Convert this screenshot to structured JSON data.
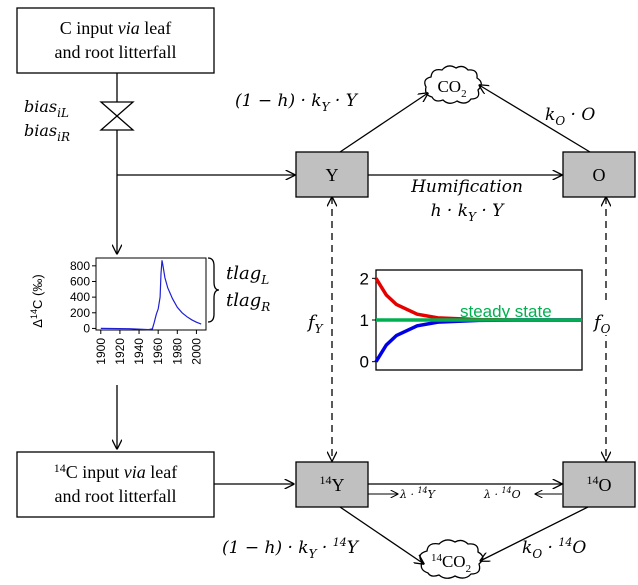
{
  "colors": {
    "pool_fill": "#c0c0c0",
    "curve_red": "#e60000",
    "curve_blue": "#0000e6",
    "curve_green": "#00b050",
    "steady_label": "#00b050",
    "series_line": "#1f1fd6"
  },
  "icons": [
    "valve-icon",
    "cloud-icon",
    "curly-brace-icon"
  ],
  "input_box": {
    "line1_pre": "C input ",
    "line1_via": "via",
    "line1_post": " leaf",
    "line2": "and root litterfall"
  },
  "input14_box": {
    "sup": "14",
    "line1_pre": "C input ",
    "line1_via": "via",
    "line1_post": " leaf",
    "line2": "and root litterfall"
  },
  "bias": {
    "il_base": "bias",
    "il_sub": "iL",
    "ir_base": "bias",
    "ir_sub": "iR"
  },
  "pools": {
    "Y": "Y",
    "O": "O",
    "Y14_sup": "14",
    "Y14": "Y",
    "O14_sup": "14",
    "O14": "O"
  },
  "co2": {
    "top_main": "CO",
    "top_sub": "2",
    "bottom_sup": "14",
    "bottom_main": "CO",
    "bottom_sub": "2"
  },
  "fluxes": {
    "top_left": "(1 − h) · k",
    "top_left_sub": "Y",
    "top_left_tail": " · Y",
    "top_right": "k",
    "top_right_sub": "O",
    "top_right_tail": " · O",
    "humification_label": "Humification",
    "humification_formula": "h · k",
    "humification_sub": "Y",
    "humification_tail": " · Y",
    "bottom_left": "(1 − h) · k",
    "bottom_left_sub": "Y",
    "bottom_left_mid": " · ",
    "bottom_left_sup": "14",
    "bottom_left_tail": "Y",
    "bottom_right": "k",
    "bottom_right_sub": "O",
    "bottom_right_mid": " · ",
    "bottom_right_sup": "14",
    "bottom_right_tail": "O",
    "decay_y": "λ · ",
    "decay_y_sup": "14",
    "decay_y_tail": "Y",
    "decay_o": "λ · ",
    "decay_o_sup": "14",
    "decay_o_tail": "O"
  },
  "fractions": {
    "fy": "f",
    "fy_sub": "Y",
    "fo": "f",
    "fo_sub": "O"
  },
  "tlag": {
    "l_base": "tlag",
    "l_sub": "L",
    "r_base": "tlag",
    "r_sub": "R"
  },
  "steady_state_label": "steady state",
  "chart_data": [
    {
      "type": "line",
      "ylabel": "Δ14C (‰)",
      "ylabel_delta": "Δ",
      "ylabel_sup": "14",
      "ylabel_tail": "C (‰)",
      "xlim": [
        1895,
        2010
      ],
      "ylim": [
        -20,
        900
      ],
      "yticks": [
        "0",
        "200",
        "400",
        "600",
        "800"
      ],
      "xticks": [
        "1900",
        "1920",
        "1940",
        "1960",
        "1980",
        "2000"
      ],
      "series": [
        {
          "x": [
            1900,
            1930,
            1950,
            1954,
            1956,
            1958,
            1960,
            1962,
            1963,
            1964,
            1965,
            1967,
            1970,
            1975,
            1980,
            1985,
            1990,
            1995,
            2000,
            2005
          ],
          "values": [
            0,
            -3,
            -15,
            -5,
            80,
            180,
            250,
            400,
            700,
            870,
            800,
            650,
            520,
            380,
            270,
            200,
            150,
            110,
            80,
            55
          ]
        }
      ]
    },
    {
      "type": "line",
      "ylim": [
        -0.2,
        2.2
      ],
      "yticks": [
        "0",
        "1",
        "2"
      ],
      "series": [
        {
          "x": [
            0,
            0.05,
            0.1,
            0.2,
            0.3,
            0.5,
            0.7,
            1.0
          ],
          "values": [
            2,
            1.6,
            1.37,
            1.14,
            1.05,
            1.01,
            1.0,
            1.0
          ]
        },
        {
          "x": [
            0,
            0.05,
            0.1,
            0.2,
            0.3,
            0.5,
            0.7,
            1.0
          ],
          "values": [
            0,
            0.4,
            0.63,
            0.86,
            0.95,
            0.99,
            1.0,
            1.0
          ]
        },
        {
          "x": [
            0,
            1.0
          ],
          "values": [
            1,
            1
          ]
        }
      ]
    }
  ]
}
